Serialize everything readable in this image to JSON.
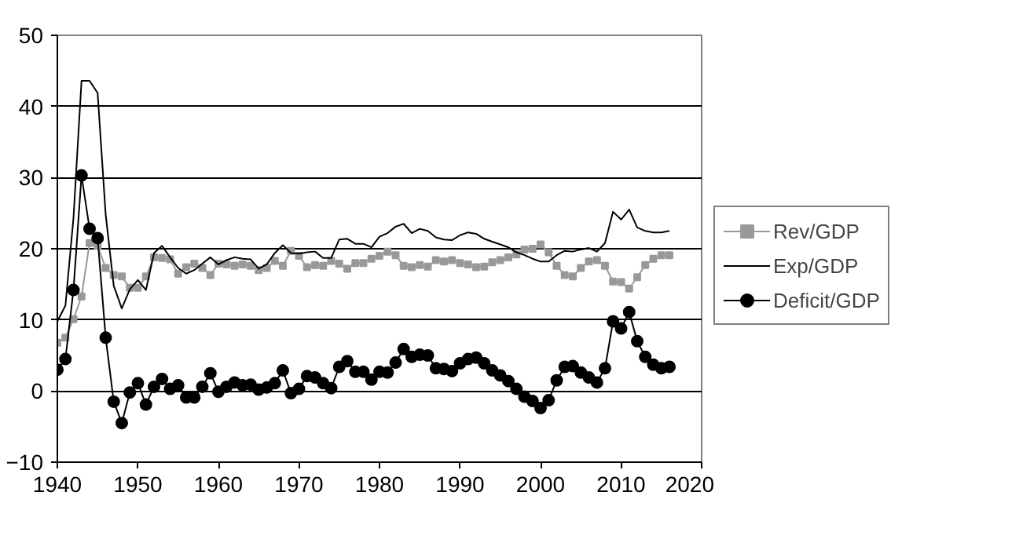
{
  "chart_data": {
    "type": "line",
    "x": [
      1940,
      1941,
      1942,
      1943,
      1944,
      1945,
      1946,
      1947,
      1948,
      1949,
      1950,
      1951,
      1952,
      1953,
      1954,
      1955,
      1956,
      1957,
      1958,
      1959,
      1960,
      1961,
      1962,
      1963,
      1964,
      1965,
      1966,
      1967,
      1968,
      1969,
      1970,
      1971,
      1972,
      1973,
      1974,
      1975,
      1976,
      1977,
      1978,
      1979,
      1980,
      1981,
      1982,
      1983,
      1984,
      1985,
      1986,
      1987,
      1988,
      1989,
      1990,
      1991,
      1992,
      1993,
      1994,
      1995,
      1996,
      1997,
      1998,
      1999,
      2000,
      2001,
      2002,
      2003,
      2004,
      2005,
      2006,
      2007,
      2008,
      2009,
      2010,
      2011,
      2012,
      2013,
      2014,
      2015,
      2016
    ],
    "xlim": [
      1940,
      2020
    ],
    "xticks": [
      1940,
      1950,
      1960,
      1970,
      1980,
      1990,
      2000,
      2010,
      2020
    ],
    "ylim": [
      -10,
      50
    ],
    "yticks": [
      -10,
      0,
      10,
      20,
      30,
      40,
      50
    ],
    "grid": "y",
    "legend": "right",
    "series": [
      {
        "name": "Rev/GDP",
        "color": "#999999",
        "marker": "square",
        "values": [
          6.8,
          7.5,
          10.1,
          13.3,
          20.8,
          20.4,
          17.3,
          16.3,
          16.1,
          14.5,
          14.5,
          16.1,
          18.8,
          18.7,
          18.5,
          16.5,
          17.4,
          17.9,
          17.3,
          16.3,
          17.9,
          17.8,
          17.6,
          17.8,
          17.6,
          17.0,
          17.3,
          18.3,
          17.6,
          19.7,
          19.0,
          17.4,
          17.7,
          17.6,
          18.3,
          17.9,
          17.2,
          18.0,
          18.0,
          18.6,
          19.0,
          19.6,
          19.1,
          17.6,
          17.4,
          17.7,
          17.5,
          18.4,
          18.2,
          18.4,
          18.0,
          17.8,
          17.4,
          17.5,
          18.1,
          18.4,
          18.8,
          19.2,
          19.9,
          20.0,
          20.6,
          19.5,
          17.6,
          16.3,
          16.1,
          17.3,
          18.2,
          18.4,
          17.6,
          15.4,
          15.3,
          14.4,
          16.0,
          17.7,
          18.6,
          19.1,
          19.1
        ]
      },
      {
        "name": "Exp/GDP",
        "color": "#000000",
        "marker": "none",
        "values": [
          9.8,
          12.0,
          24.3,
          43.6,
          43.6,
          41.9,
          24.8,
          14.8,
          11.6,
          14.3,
          15.6,
          14.2,
          19.4,
          20.4,
          18.8,
          17.3,
          16.5,
          17.0,
          17.9,
          18.8,
          17.8,
          18.4,
          18.8,
          18.6,
          18.5,
          17.2,
          17.8,
          19.4,
          20.5,
          19.4,
          19.3,
          19.5,
          19.6,
          18.7,
          18.7,
          21.3,
          21.4,
          20.7,
          20.7,
          20.2,
          21.7,
          22.2,
          23.1,
          23.5,
          22.2,
          22.8,
          22.5,
          21.6,
          21.3,
          21.2,
          21.9,
          22.3,
          22.1,
          21.4,
          21.0,
          20.6,
          20.2,
          19.5,
          19.1,
          18.6,
          18.2,
          18.2,
          19.1,
          19.7,
          19.6,
          19.9,
          20.1,
          19.6,
          20.8,
          25.2,
          24.1,
          25.5,
          23.0,
          22.5,
          22.3,
          22.3,
          22.5
        ]
      },
      {
        "name": "Deficit/GDP",
        "color": "#000000",
        "marker": "circle",
        "values": [
          3.0,
          4.5,
          14.2,
          30.3,
          22.8,
          21.5,
          7.5,
          -1.5,
          -4.5,
          -0.2,
          1.1,
          -1.9,
          0.6,
          1.7,
          0.3,
          0.8,
          -0.9,
          -0.9,
          0.6,
          2.5,
          -0.1,
          0.6,
          1.2,
          0.8,
          0.9,
          0.2,
          0.5,
          1.1,
          2.9,
          -0.3,
          0.3,
          2.1,
          1.9,
          1.1,
          0.4,
          3.4,
          4.2,
          2.7,
          2.7,
          1.6,
          2.7,
          2.6,
          4.0,
          5.9,
          4.8,
          5.1,
          5.0,
          3.2,
          3.1,
          2.8,
          3.9,
          4.5,
          4.7,
          3.9,
          2.9,
          2.2,
          1.4,
          0.3,
          -0.8,
          -1.4,
          -2.4,
          -1.3,
          1.5,
          3.4,
          3.5,
          2.6,
          1.9,
          1.2,
          3.2,
          9.8,
          8.8,
          11.1,
          7.0,
          4.8,
          3.7,
          3.2,
          3.4
        ]
      }
    ]
  }
}
